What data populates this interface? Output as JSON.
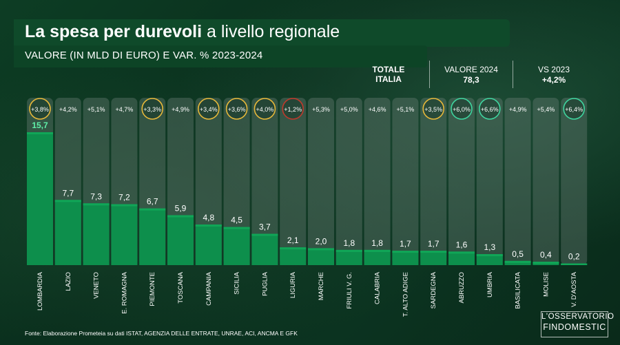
{
  "header": {
    "title_bold": "La spesa per durevoli",
    "title_light": " a livello regionale",
    "subtitle": "VALORE (IN MLD DI EURO) E VAR. % 2023-2024"
  },
  "totale": {
    "label_line1": "TOTALE",
    "label_line2": "ITALIA",
    "valore_head": "VALORE 2024",
    "valore": "78,3",
    "vs_head": "VS 2023",
    "vs": "+4,2%"
  },
  "footer": {
    "source": "Fonte: Elaborazione Prometeia su dati ISTAT, AGENZIA DELLE ENTRATE, UNRAE, ACI, ANCMA E GFK"
  },
  "logo": {
    "line1": "L'OSSERVATORIO",
    "line2": "FINDOMESTIC"
  },
  "colors": {
    "bar": "#0d8f4c",
    "bar_top": "#10a657",
    "column_bg": "rgba(110,130,120,0.38)",
    "ring_yellow": "#e8b93a",
    "ring_red": "#c0392b",
    "ring_teal": "#3fd6a0",
    "highlight_value": "#5ff0a8"
  },
  "chart_data": {
    "type": "bar",
    "categories": [
      "LOMBARDIA",
      "LAZIO",
      "VENETO",
      "E. ROMAGNA",
      "PIEMONTE",
      "TOSCANA",
      "CAMPANIA",
      "SICILIA",
      "PUGLIA",
      "LIGURIA",
      "MARCHE",
      "FRIULI V. G.",
      "CALABRIA",
      "T. ALTO ADIGE",
      "SARDEGNA",
      "ABRUZZO",
      "UMBRIA",
      "BASILICATA",
      "MOLISE",
      "V. D'AOSTA"
    ],
    "values": [
      15.7,
      7.7,
      7.3,
      7.2,
      6.7,
      5.9,
      4.8,
      4.5,
      3.7,
      2.1,
      2.0,
      1.8,
      1.8,
      1.7,
      1.7,
      1.6,
      1.3,
      0.5,
      0.4,
      0.2
    ],
    "value_labels": [
      "15,7",
      "7,7",
      "7,3",
      "7,2",
      "6,7",
      "5,9",
      "4,8",
      "4,5",
      "3,7",
      "2,1",
      "2,0",
      "1,8",
      "1,8",
      "1,7",
      "1,7",
      "1,6",
      "1,3",
      "0,5",
      "0,4",
      "0,2"
    ],
    "var_labels": [
      "+3,8%",
      "+4,2%",
      "+5,1%",
      "+4,7%",
      "+3,3%",
      "+4,9%",
      "+3,4%",
      "+3,6%",
      "+4,0%",
      "+1,2%",
      "+5,3%",
      "+5,0%",
      "+4,6%",
      "+5,1%",
      "+3,5%",
      "+6,0%",
      "+6,6%",
      "+4,9%",
      "+5,4%",
      "+6,4%"
    ],
    "var_rings": [
      "yellow",
      "none",
      "none",
      "none",
      "yellow",
      "none",
      "yellow",
      "yellow",
      "yellow",
      "red",
      "none",
      "none",
      "none",
      "none",
      "yellow",
      "teal",
      "teal",
      "none",
      "none",
      "teal"
    ],
    "ylim": [
      0,
      15.7
    ]
  }
}
